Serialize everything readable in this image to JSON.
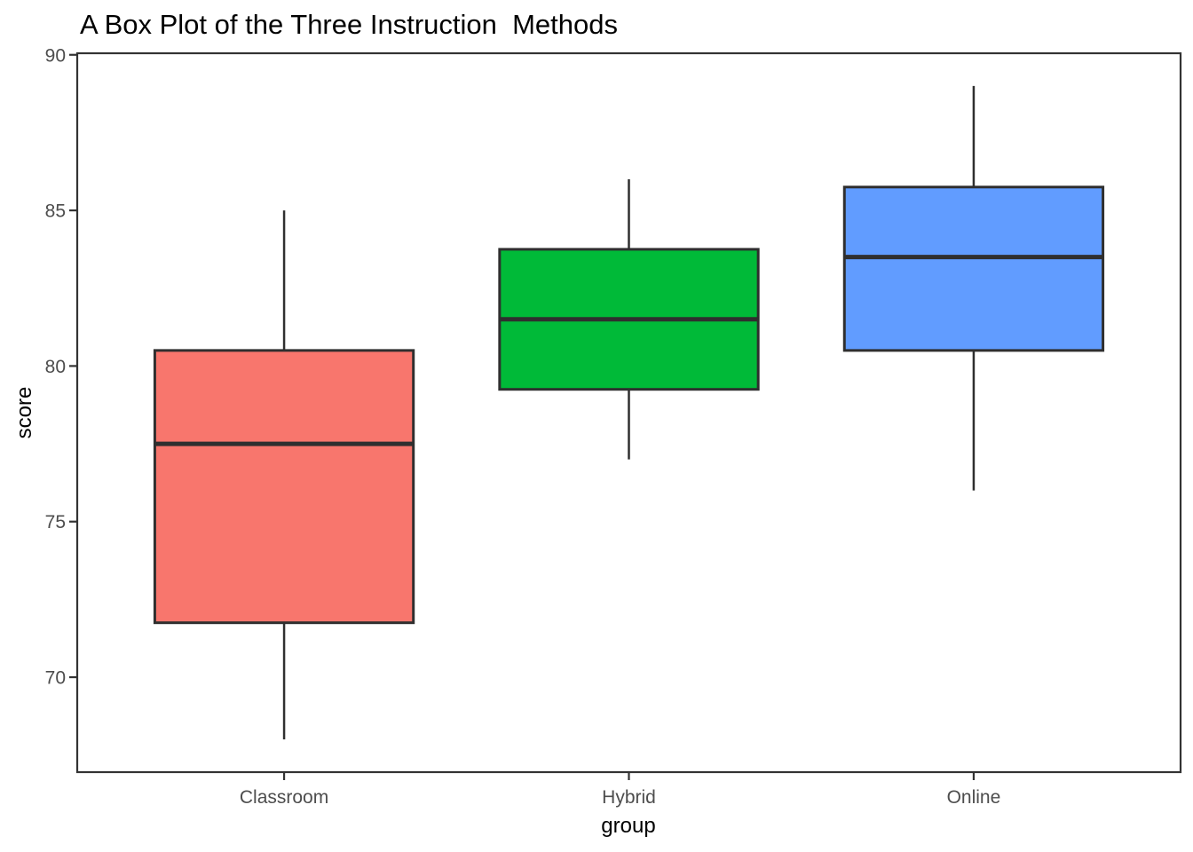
{
  "chart_data": {
    "type": "boxplot",
    "title": "A Box Plot of the Three Instruction  Methods",
    "xlabel": "group",
    "ylabel": "score",
    "categories": [
      "Classroom",
      "Hybrid",
      "Online"
    ],
    "series": [
      {
        "name": "Classroom",
        "min": 68,
        "q1": 71.75,
        "median": 77.5,
        "q3": 80.5,
        "max": 85,
        "fill": "#F8766D"
      },
      {
        "name": "Hybrid",
        "min": 77,
        "q1": 79.25,
        "median": 81.5,
        "q3": 83.75,
        "max": 86,
        "fill": "#00BA38"
      },
      {
        "name": "Online",
        "min": 76,
        "q1": 80.5,
        "median": 83.5,
        "q3": 85.75,
        "max": 89,
        "fill": "#619CFF"
      }
    ],
    "ylim": [
      66.95,
      90.05
    ],
    "yticks": [
      70,
      75,
      80,
      85,
      90
    ],
    "grid": "off",
    "legend": "none",
    "colors": {
      "box_stroke": "#2F2F2F",
      "axis_border": "#333333",
      "tick_mark": "#333333",
      "tick_label": "#4D4D4D",
      "axis_title": "#000000",
      "title": "#000000",
      "background": "#FFFFFF"
    }
  }
}
